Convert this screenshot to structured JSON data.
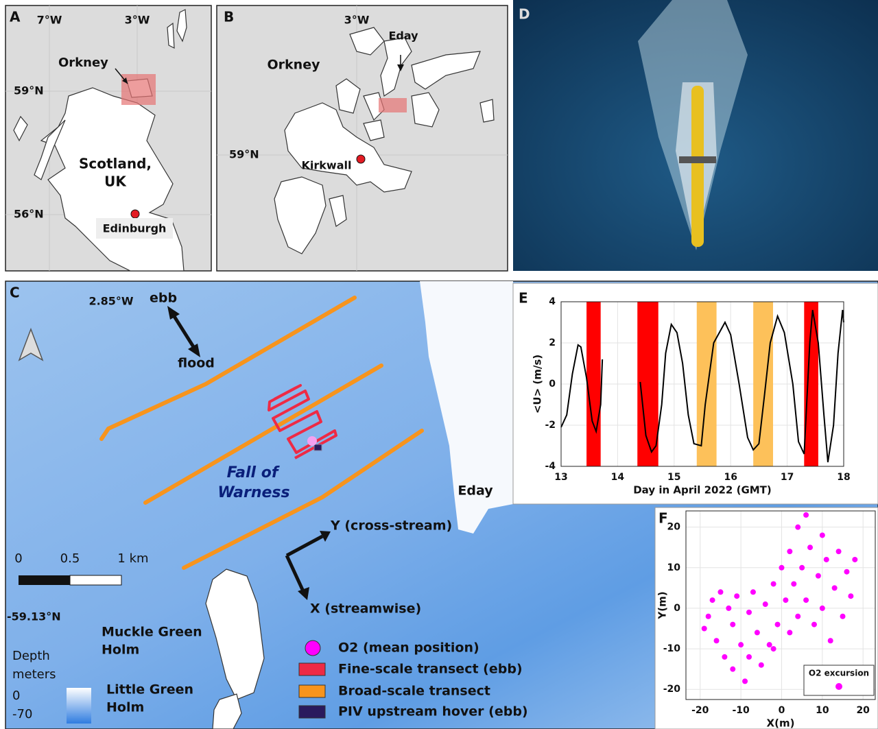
{
  "panel_a": {
    "label": "A",
    "lon_labels": [
      "7°W",
      "3°W"
    ],
    "lat_labels": [
      "59°N",
      "56°N"
    ],
    "orkney": "Orkney",
    "country": [
      "Scotland,",
      "UK"
    ],
    "city": "Edinburgh"
  },
  "panel_b": {
    "label": "B",
    "lon_label": "3°W",
    "lat_label": "59°N",
    "orkney": "Orkney",
    "eday": "Eday",
    "town": "Kirkwall"
  },
  "panel_c": {
    "label": "C",
    "lon_label": "2.85°W",
    "lat_label": "-59.13°N",
    "ebb": "ebb",
    "flood": "flood",
    "site": [
      "Fall of",
      "Warness"
    ],
    "eday": "Eday",
    "axis_y": "Y (cross-stream)",
    "axis_x": "X (streamwise)",
    "scale_bar": [
      "0",
      "0.5",
      "1 km"
    ],
    "islands": [
      [
        "Muckle Green",
        "Holm"
      ],
      [
        "Little Green",
        "Holm"
      ]
    ],
    "depth_legend": {
      "title": [
        "Depth",
        "meters"
      ],
      "labels": [
        "0",
        "-70"
      ]
    },
    "legend": [
      {
        "name": "O2 (mean position)",
        "color": "#ff00ff"
      },
      {
        "name": "Fine-scale transect (ebb)",
        "color": "#ee2a45"
      },
      {
        "name": "Broad-scale transect",
        "color": "#f7941d"
      },
      {
        "name": "PIV upstream hover (ebb)",
        "color": "#2a1a5e"
      }
    ]
  },
  "panel_d": {
    "label": "D"
  },
  "chart_data": [
    {
      "type": "line",
      "label": "E",
      "xlabel": "Day in April 2022 (GMT)",
      "ylabel": "<U> (m/s)",
      "x": [
        13.0,
        13.1,
        13.2,
        13.3,
        13.35,
        13.45,
        13.55,
        13.62,
        13.7,
        13.73,
        14.0,
        14.4,
        14.5,
        14.6,
        14.68,
        14.78,
        14.85,
        14.95,
        15.05,
        15.15,
        15.25,
        15.35,
        15.48,
        15.55,
        15.7,
        15.9,
        16.0,
        16.15,
        16.3,
        16.4,
        16.5,
        16.6,
        16.7,
        16.83,
        16.95,
        17.1,
        17.2,
        17.3,
        17.4,
        17.45,
        17.55,
        17.65,
        17.72,
        17.82,
        17.9,
        17.98,
        18.0
      ],
      "series": [
        {
          "color": "#000000",
          "values": [
            -2.1,
            -1.5,
            0.5,
            1.9,
            1.8,
            0.3,
            -1.8,
            -2.3,
            -1.0,
            1.2,
            null,
            0.1,
            -2.5,
            -3.3,
            -3.0,
            -1.0,
            1.5,
            2.9,
            2.5,
            1.0,
            -1.5,
            -2.9,
            -3.0,
            -1.0,
            2.0,
            3.0,
            2.4,
            0.0,
            -2.6,
            -3.2,
            -2.9,
            -0.5,
            2.0,
            3.3,
            2.5,
            0.0,
            -2.8,
            -3.4,
            2.0,
            3.6,
            2.0,
            -1.5,
            -3.8,
            -2.0,
            1.5,
            3.6,
            3.0
          ]
        }
      ],
      "spans": [
        {
          "x": [
            13.45,
            13.7
          ],
          "color": "#ff0000"
        },
        {
          "x": [
            14.35,
            14.72
          ],
          "color": "#ff0000"
        },
        {
          "x": [
            15.4,
            15.75
          ],
          "color": "#fdc15a"
        },
        {
          "x": [
            16.4,
            16.75
          ],
          "color": "#fdc15a"
        },
        {
          "x": [
            17.3,
            17.55
          ],
          "color": "#ff0000"
        }
      ],
      "xlim": [
        13,
        18
      ],
      "ylim": [
        -4,
        4
      ],
      "xticks": [
        13,
        14,
        15,
        16,
        17,
        18
      ],
      "yticks": [
        -4,
        -2,
        0,
        2,
        4
      ],
      "grid": true
    },
    {
      "type": "scatter",
      "label": "F",
      "xlabel": "X(m)",
      "ylabel": "Y(m)",
      "x": [
        -19,
        -18,
        -17,
        -16,
        -15,
        -14,
        -13,
        -12,
        -12,
        -11,
        -10,
        -9,
        -8,
        -8,
        -7,
        -6,
        -5,
        -4,
        -3,
        -2,
        -1,
        0,
        1,
        2,
        2,
        3,
        4,
        4,
        5,
        6,
        6,
        7,
        8,
        9,
        10,
        10,
        11,
        12,
        13,
        14,
        15,
        16,
        17,
        18,
        -2
      ],
      "series": [
        {
          "name": "O2 excursion",
          "color": "#ff00ff",
          "values": [
            -5,
            -2,
            2,
            -8,
            4,
            -12,
            0,
            -4,
            -15,
            3,
            -9,
            -18,
            -1,
            -12,
            4,
            -6,
            -14,
            1,
            -9,
            6,
            -4,
            10,
            2,
            -6,
            14,
            6,
            20,
            -2,
            10,
            23,
            2,
            15,
            -4,
            8,
            18,
            0,
            12,
            -8,
            5,
            14,
            -2,
            9,
            3,
            12,
            -10
          ]
        }
      ],
      "xlim": [
        -23.5,
        23
      ],
      "ylim": [
        -22.5,
        24
      ],
      "xticks": [
        -20,
        -10,
        0,
        10,
        20
      ],
      "yticks": [
        -20,
        -10,
        0,
        10,
        20
      ],
      "grid": true,
      "legend": "lower right"
    }
  ]
}
